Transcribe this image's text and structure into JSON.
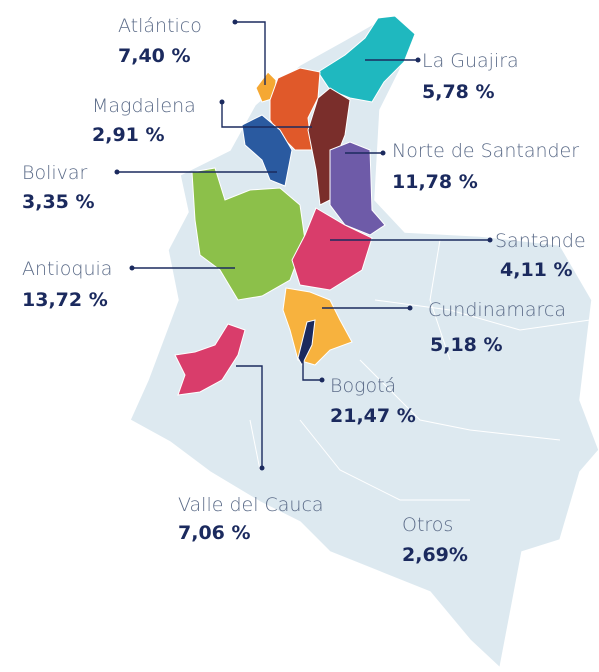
{
  "regions": [
    {
      "name": "Atlántico",
      "value": "7,40 %"
    },
    {
      "name": "La Guajira",
      "value": "5,78 %"
    },
    {
      "name": "Magdalena",
      "value": "2,91 %"
    },
    {
      "name": "Norte de Santander",
      "value": "11,78 %"
    },
    {
      "name": "Bolivar",
      "value": "3,35 %"
    },
    {
      "name": "Antioquia",
      "value": "13,72 %"
    },
    {
      "name": "Santande",
      "value": "4,11 %"
    },
    {
      "name": "Cundinamarca",
      "value": "5,18 %"
    },
    {
      "name": "Bogotá",
      "value": "21,47 %"
    },
    {
      "name": "Valle del Cauca",
      "value": "7,06 %"
    },
    {
      "name": "Otros",
      "value": "2,69%"
    }
  ]
}
